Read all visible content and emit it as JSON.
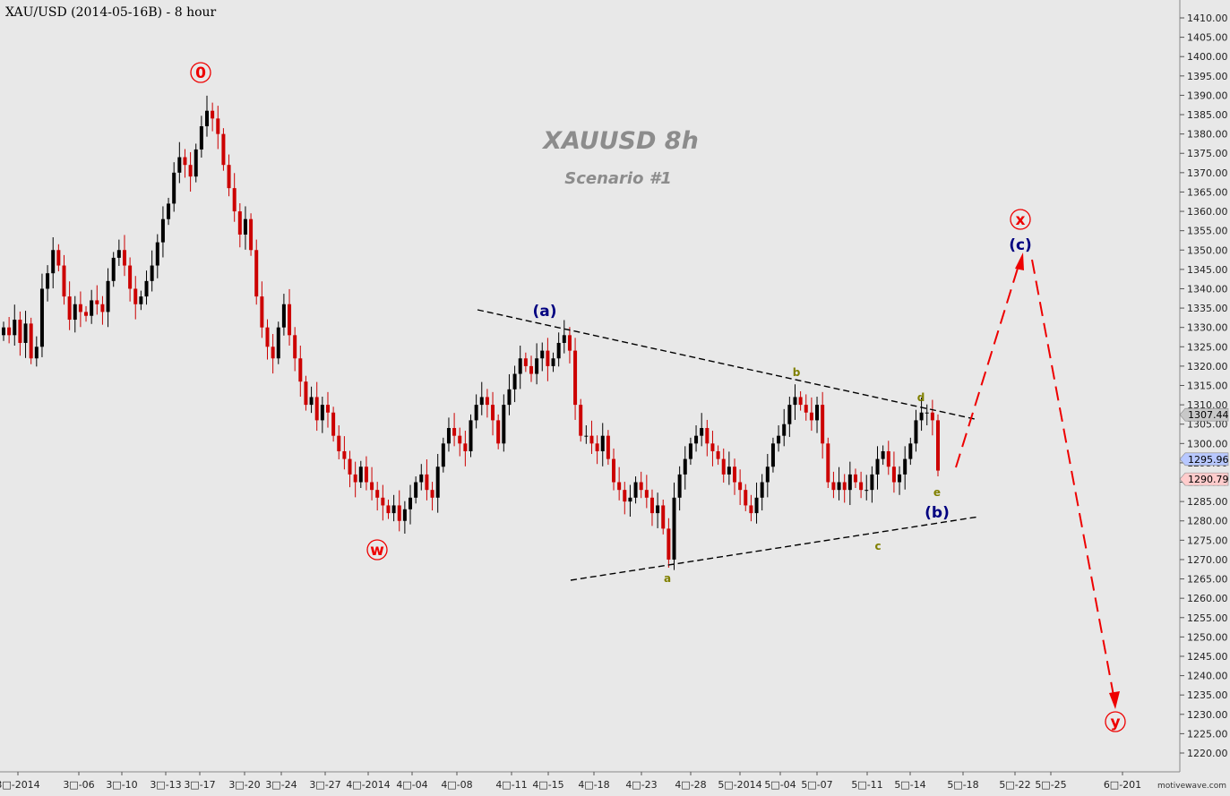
{
  "header": {
    "title": "XAU/USD (2014-05-16B) - 8 hour"
  },
  "chart_data": {
    "type": "candlestick",
    "title": "XAUUSD  8h",
    "subtitle": "Scenario #1",
    "ylim": [
      1216,
      1414
    ],
    "y_ticks": [
      1220,
      1225,
      1230,
      1235,
      1240,
      1245,
      1250,
      1255,
      1260,
      1265,
      1270,
      1275,
      1280,
      1285,
      1290,
      1295,
      1300,
      1305,
      1310,
      1315,
      1320,
      1325,
      1330,
      1335,
      1340,
      1345,
      1350,
      1355,
      1360,
      1365,
      1370,
      1375,
      1380,
      1385,
      1390,
      1395,
      1400,
      1405,
      1410
    ],
    "x_tick_labels": [
      "3\u0000-2014",
      "3\u0000-06",
      "3\u0000-10",
      "3\u0000-13",
      "3\u0000-17",
      "3\u0000-20",
      "3\u0000-24",
      "3\u0000-27",
      "4\u0000-2014",
      "4\u0000-04",
      "4\u0000-08",
      "4\u0000-11",
      "4\u0000-15",
      "4\u0000-18",
      "4\u0000-23",
      "4\u0000-28",
      "5\u0000-2014",
      "5\u0000-04",
      "5\u0000-07",
      "5\u0000-11",
      "5\u0000-14",
      "5\u0000-18",
      "5\u0000-22",
      "5\u0000-25",
      "6\u0000-201"
    ],
    "price_labels": [
      {
        "value": 1307.44,
        "text": "1307.44",
        "color": "#c8c8c8"
      },
      {
        "value": 1295.96,
        "text": "1295.96",
        "color": "#b8c8ff"
      },
      {
        "value": 1290.79,
        "text": "1290.79",
        "color": "#ffcccc"
      }
    ],
    "candles_close": [
      1330,
      1328,
      1332,
      1326,
      1331,
      1322,
      1325,
      1340,
      1344,
      1350,
      1346,
      1338,
      1332,
      1336,
      1334,
      1333,
      1337,
      1336,
      1334,
      1342,
      1348,
      1350,
      1346,
      1340,
      1336,
      1338,
      1342,
      1346,
      1352,
      1358,
      1362,
      1370,
      1374,
      1372,
      1369,
      1376,
      1382,
      1386,
      1384,
      1380,
      1372,
      1366,
      1360,
      1354,
      1358,
      1350,
      1338,
      1330,
      1325,
      1322,
      1330,
      1336,
      1328,
      1322,
      1316,
      1310,
      1312,
      1306,
      1310,
      1308,
      1302,
      1298,
      1296,
      1292,
      1290,
      1294,
      1290,
      1288,
      1286,
      1284,
      1282,
      1284,
      1280,
      1283,
      1286,
      1290,
      1292,
      1288,
      1286,
      1294,
      1300,
      1304,
      1302,
      1300,
      1298,
      1306,
      1310,
      1312,
      1310,
      1306,
      1300,
      1310,
      1314,
      1318,
      1322,
      1320,
      1318,
      1322,
      1324,
      1320,
      1322,
      1326,
      1328,
      1324,
      1310,
      1302,
      1302,
      1300,
      1298,
      1302,
      1296,
      1290,
      1288,
      1285,
      1286,
      1290,
      1288,
      1286,
      1282,
      1284,
      1278,
      1270,
      1286,
      1292,
      1296,
      1300,
      1302,
      1304,
      1300,
      1298,
      1296,
      1292,
      1294,
      1290,
      1288,
      1284,
      1282,
      1286,
      1290,
      1294,
      1300,
      1302,
      1305,
      1310,
      1312,
      1310,
      1308,
      1306,
      1310,
      1300,
      1290,
      1288,
      1290,
      1288,
      1292,
      1290,
      1288,
      1288,
      1292,
      1296,
      1298,
      1294,
      1290,
      1292,
      1296,
      1300,
      1306,
      1308,
      1308,
      1306,
      1293
    ],
    "annotations": {
      "wave_0": "0",
      "wave_w": "w",
      "wave_x": "x",
      "wave_y": "y",
      "wave_a_big": "(a)",
      "wave_b_big": "(b)",
      "wave_c_big": "(c)",
      "sub_a": "a",
      "sub_b": "b",
      "sub_c": "c",
      "sub_d": "d",
      "sub_e": "e"
    },
    "colors": {
      "up": "#000000",
      "down": "#cc0000",
      "projection": "#ee0000",
      "navy": "#000080",
      "olive": "#808000"
    }
  },
  "footer": {
    "watermark": "motivewave.com"
  }
}
